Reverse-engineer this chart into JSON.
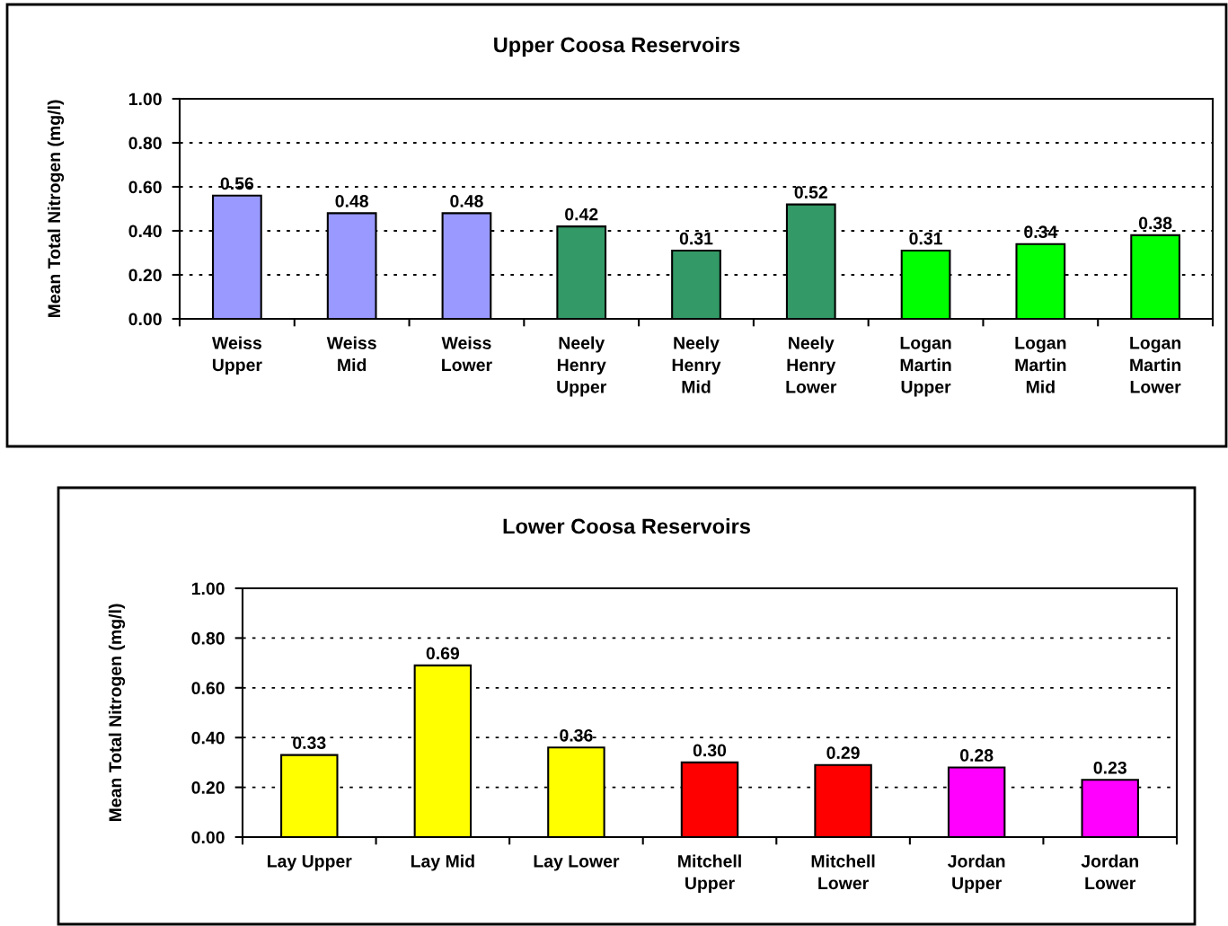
{
  "chart_data": [
    {
      "type": "bar",
      "title": "Upper Coosa Reservoirs",
      "ylabel": "Mean Total Nitrogen (mg/l)",
      "categories": [
        "Weiss Upper",
        "Weiss Mid",
        "Weiss Lower",
        "Neely Henry Upper",
        "Neely Henry Mid",
        "Neely Henry Lower",
        "Logan Martin Upper",
        "Logan Martin Mid",
        "Logan Martin Lower"
      ],
      "values": [
        0.56,
        0.48,
        0.48,
        0.42,
        0.31,
        0.52,
        0.31,
        0.34,
        0.38
      ],
      "colors": [
        "#9999ff",
        "#9999ff",
        "#9999ff",
        "#339966",
        "#339966",
        "#339966",
        "#00ff00",
        "#00ff00",
        "#00ff00"
      ],
      "ylim": [
        0,
        1
      ],
      "yticks": [
        {
          "value": 0,
          "label": "0.00"
        },
        {
          "value": 0.2,
          "label": "0.20"
        },
        {
          "value": 0.4,
          "label": "0.40"
        },
        {
          "value": 0.6,
          "label": "0.60"
        },
        {
          "value": 0.8,
          "label": "0.80"
        },
        {
          "value": 1,
          "label": "1.00"
        }
      ],
      "grid": "y",
      "data_labels": true
    },
    {
      "type": "bar",
      "title": "Lower Coosa Reservoirs",
      "ylabel": "Mean Total Nitrogen (mg/l)",
      "categories": [
        "Lay Upper",
        "Lay Mid",
        "Lay Lower",
        "Mitchell Upper",
        "Mitchell Lower",
        "Jordan Upper",
        "Jordan Lower"
      ],
      "values": [
        0.33,
        0.69,
        0.36,
        0.3,
        0.29,
        0.28,
        0.23
      ],
      "colors": [
        "#ffff00",
        "#ffff00",
        "#ffff00",
        "#ff0000",
        "#ff0000",
        "#ff00ff",
        "#ff00ff"
      ],
      "ylim": [
        0,
        1
      ],
      "yticks": [
        {
          "value": 0,
          "label": "0.00"
        },
        {
          "value": 0.2,
          "label": "0.20"
        },
        {
          "value": 0.4,
          "label": "0.40"
        },
        {
          "value": 0.6,
          "label": "0.60"
        },
        {
          "value": 0.8,
          "label": "0.80"
        },
        {
          "value": 1,
          "label": "1.00"
        }
      ],
      "grid": "y",
      "value_labels": [
        "0.33",
        "0.69",
        "0.36",
        "0.30",
        "0.29",
        "0.28",
        "0.23"
      ]
    }
  ]
}
